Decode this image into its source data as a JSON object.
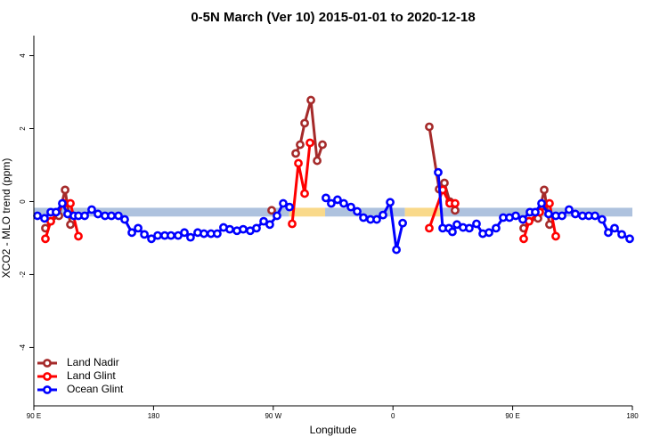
{
  "chart_data": {
    "type": "line",
    "title": "0-5N March (Ver 10)   2015-01-01 to 2020-12-18",
    "x_label": "Longitude",
    "y_label": "XCO2 - MLO trend (ppm)",
    "xlim": [
      90,
      540
    ],
    "ylim": [
      -5.6,
      4.55
    ],
    "xticks": [
      {
        "value": 90,
        "label": "90 E"
      },
      {
        "value": 180,
        "label": "180"
      },
      {
        "value": 270,
        "label": "90 W"
      },
      {
        "value": 360,
        "label": "0"
      },
      {
        "value": 450,
        "label": "90 E"
      },
      {
        "value": 540,
        "label": "180"
      }
    ],
    "yticks": [
      -4,
      -2,
      0,
      2,
      4
    ],
    "legend": "bottom-left",
    "surface_band": {
      "bottom": -0.41,
      "top": -0.17,
      "segments": [
        {
          "x0": 90,
          "x1": 282,
          "color": "#aec2de"
        },
        {
          "x0": 282,
          "x1": 309,
          "color": "#f9d98a"
        },
        {
          "x0": 309,
          "x1": 369,
          "color": "#aec2de"
        },
        {
          "x0": 369,
          "x1": 396,
          "color": "#f9d98a"
        },
        {
          "x0": 396,
          "x1": 540,
          "color": "#aec2de"
        }
      ]
    },
    "series": [
      {
        "name": "Land Nadir",
        "color": "#a52a2a",
        "x": [
          98.7,
          102.7,
          108.8,
          113.5,
          117.5,
          190,
          268.8,
          278,
          286.9,
          290.2,
          293.6,
          298.3,
          303.0,
          307.0,
          350,
          387.3,
          394.7,
          398.7,
          402.7,
          406.7,
          430,
          458.3,
          462.3,
          469.0,
          473.7,
          477.7
        ],
        "values": [
          -0.73,
          -0.54,
          -0.39,
          0.32,
          -0.63,
          null,
          -0.24,
          null,
          1.32,
          1.56,
          2.15,
          2.78,
          1.12,
          1.56,
          null,
          2.05,
          0.34,
          0.51,
          0.0,
          -0.24,
          null,
          -0.73,
          -0.54,
          -0.46,
          0.32,
          -0.63
        ]
      },
      {
        "name": "Land Glint",
        "color": "#ff0000",
        "x": [
          98.7,
          102.7,
          112.8,
          117.5,
          123.5,
          200,
          284.2,
          288.9,
          293.6,
          297.6,
          340,
          387.3,
          397.4,
          402.7,
          406.7,
          430,
          458.3,
          462.3,
          470.3,
          477.7,
          482.4
        ],
        "values": [
          -1.02,
          -0.54,
          -0.05,
          -0.05,
          -0.95,
          null,
          -0.61,
          1.05,
          0.22,
          1.61,
          null,
          -0.73,
          0.32,
          -0.05,
          -0.05,
          null,
          -1.02,
          -0.54,
          -0.29,
          -0.05,
          -0.95
        ]
      },
      {
        "name": "Ocean Glint",
        "color": "#0000ff",
        "x": [
          92.7,
          98.0,
          102.7,
          106.7,
          111.4,
          115.4,
          120.1,
          123.5,
          128.2,
          133.5,
          138.2,
          143.5,
          148.3,
          153.6,
          158.3,
          163.7,
          168.4,
          173.1,
          178.4,
          183.1,
          188.4,
          193.1,
          198.5,
          203.2,
          207.8,
          213.2,
          217.9,
          223.2,
          227.9,
          232.6,
          237.3,
          242.7,
          247.4,
          252.7,
          257.4,
          262.8,
          267.4,
          272.8,
          277.5,
          282.2,
          295,
          309.6,
          313.6,
          318.3,
          323.0,
          328.4,
          333.1,
          337.8,
          343.1,
          347.8,
          352.5,
          357.9,
          362.6,
          367.3,
          380,
          394.0,
          397.4,
          402.1,
          404.7,
          408.1,
          412.7,
          417.4,
          422.8,
          427.5,
          432.2,
          437.5,
          442.9,
          447.6,
          452.3,
          457.6,
          463.0,
          467.0,
          471.7,
          477.0,
          482.4,
          487.1,
          492.4,
          497.1,
          502.5,
          507.2,
          511.9,
          517.2,
          521.9,
          526.6,
          532.0,
          538.0
        ],
        "values": [
          -0.39,
          -0.46,
          -0.29,
          -0.29,
          -0.05,
          -0.34,
          -0.39,
          -0.39,
          -0.39,
          -0.22,
          -0.34,
          -0.39,
          -0.39,
          -0.39,
          -0.49,
          -0.85,
          -0.73,
          -0.9,
          -1.02,
          -0.93,
          -0.93,
          -0.93,
          -0.93,
          -0.85,
          -0.98,
          -0.85,
          -0.88,
          -0.88,
          -0.88,
          -0.71,
          -0.76,
          -0.8,
          -0.76,
          -0.8,
          -0.73,
          -0.54,
          -0.63,
          -0.39,
          -0.05,
          -0.15,
          null,
          0.1,
          -0.05,
          0.05,
          -0.05,
          -0.15,
          -0.27,
          -0.44,
          -0.49,
          -0.49,
          -0.37,
          -0.02,
          -1.32,
          -0.59,
          null,
          0.8,
          -0.73,
          -0.73,
          -0.83,
          -0.63,
          -0.71,
          -0.73,
          -0.61,
          -0.88,
          -0.85,
          -0.73,
          -0.44,
          -0.44,
          -0.39,
          -0.49,
          -0.29,
          -0.29,
          -0.05,
          -0.34,
          -0.39,
          -0.39,
          -0.22,
          -0.34,
          -0.39,
          -0.39,
          -0.39,
          -0.49,
          -0.85,
          -0.73,
          -0.9,
          -1.02
        ]
      }
    ]
  }
}
